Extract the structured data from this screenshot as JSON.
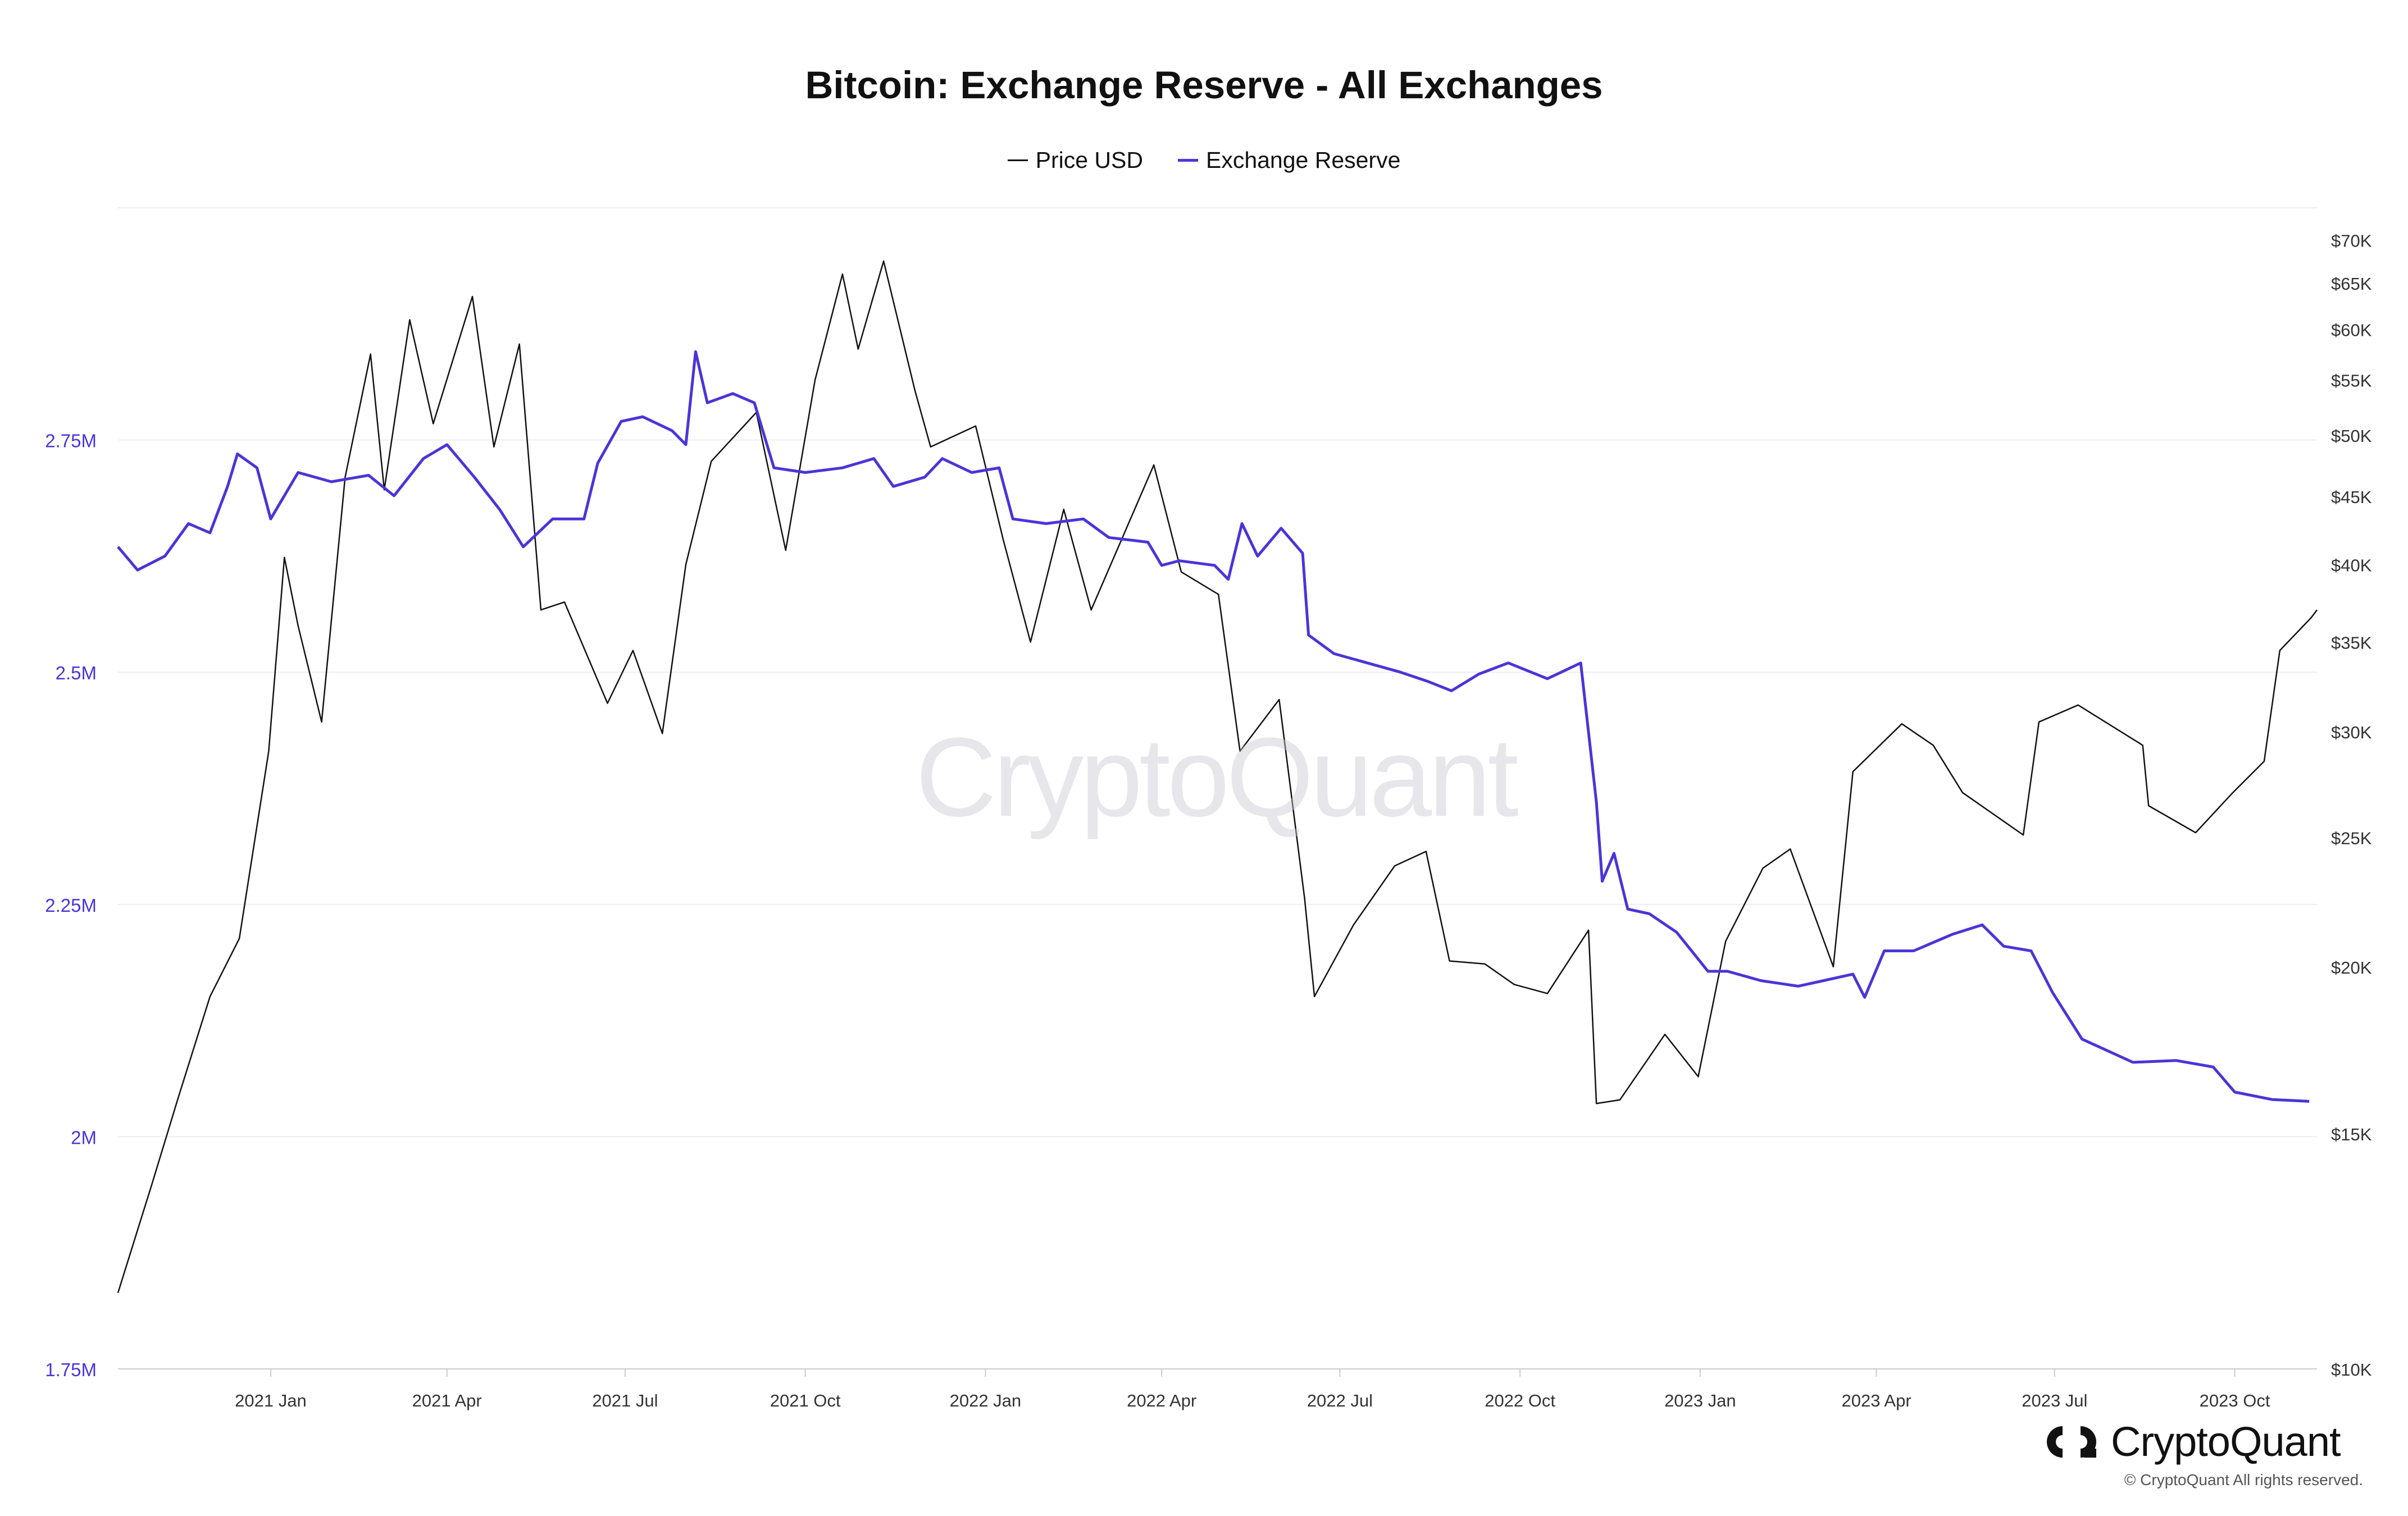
{
  "chart_data": {
    "type": "line",
    "title": "Bitcoin: Exchange Reserve - All Exchanges",
    "legend": [
      "Price USD",
      "Exchange Reserve"
    ],
    "legend_placement": "top-center",
    "colors": {
      "price": "#111111",
      "reserve": "#4a35d8",
      "left_axis_text": "#4a35d8"
    },
    "x_ticks": [
      "2021 Jan",
      "2021 Apr",
      "2021 Jul",
      "2021 Oct",
      "2022 Jan",
      "2022 Apr",
      "2022 Jul",
      "2022 Oct",
      "2023 Jan",
      "2023 Apr",
      "2023 Jul",
      "2023 Oct"
    ],
    "x_range": [
      "2020-10-15",
      "2023-11-12"
    ],
    "y_left": {
      "ticks": [
        "1.75M",
        "2M",
        "2.25M",
        "2.5M",
        "2.75M"
      ],
      "values": [
        1750000,
        2000000,
        2250000,
        2500000,
        2750000
      ],
      "range": [
        1750000,
        3000000
      ]
    },
    "y_right": {
      "scale": "log",
      "ticks": [
        "$10K",
        "$15K",
        "$20K",
        "$25K",
        "$30K",
        "$35K",
        "$40K",
        "$45K",
        "$50K",
        "$55K",
        "$60K",
        "$65K",
        "$70K"
      ],
      "values": [
        10000,
        15000,
        20000,
        25000,
        30000,
        35000,
        40000,
        45000,
        50000,
        55000,
        60000,
        65000,
        70000
      ],
      "range": [
        10000,
        74000
      ]
    },
    "grid": true,
    "series": [
      {
        "name": "Price USD",
        "axis": "right",
        "points": [
          [
            "2020-10-15",
            11400
          ],
          [
            "2020-11-01",
            13700
          ],
          [
            "2020-11-15",
            16000
          ],
          [
            "2020-12-01",
            19000
          ],
          [
            "2020-12-16",
            21000
          ],
          [
            "2020-12-31",
            29000
          ],
          [
            "2021-01-08",
            40500
          ],
          [
            "2021-01-15",
            36000
          ],
          [
            "2021-01-27",
            30500
          ],
          [
            "2021-02-08",
            46500
          ],
          [
            "2021-02-21",
            57500
          ],
          [
            "2021-02-28",
            45500
          ],
          [
            "2021-03-13",
            61000
          ],
          [
            "2021-03-25",
            51000
          ],
          [
            "2021-04-14",
            63500
          ],
          [
            "2021-04-25",
            49000
          ],
          [
            "2021-05-08",
            58500
          ],
          [
            "2021-05-19",
            37000
          ],
          [
            "2021-05-31",
            37500
          ],
          [
            "2021-06-22",
            31500
          ],
          [
            "2021-07-05",
            34500
          ],
          [
            "2021-07-20",
            29900
          ],
          [
            "2021-08-01",
            40000
          ],
          [
            "2021-08-14",
            47800
          ],
          [
            "2021-09-06",
            52000
          ],
          [
            "2021-09-21",
            41000
          ],
          [
            "2021-10-06",
            55000
          ],
          [
            "2021-10-20",
            66000
          ],
          [
            "2021-10-28",
            58000
          ],
          [
            "2021-11-10",
            67500
          ],
          [
            "2021-11-26",
            54000
          ],
          [
            "2021-12-04",
            49000
          ],
          [
            "2021-12-27",
            50800
          ],
          [
            "2022-01-10",
            41800
          ],
          [
            "2022-01-24",
            35000
          ],
          [
            "2022-02-10",
            44000
          ],
          [
            "2022-02-24",
            37000
          ],
          [
            "2022-03-28",
            47500
          ],
          [
            "2022-04-11",
            39500
          ],
          [
            "2022-04-30",
            38000
          ],
          [
            "2022-05-11",
            29000
          ],
          [
            "2022-05-31",
            31700
          ],
          [
            "2022-06-13",
            22500
          ],
          [
            "2022-06-18",
            19000
          ],
          [
            "2022-07-08",
            21500
          ],
          [
            "2022-07-29",
            23800
          ],
          [
            "2022-08-14",
            24400
          ],
          [
            "2022-08-26",
            20200
          ],
          [
            "2022-09-13",
            20100
          ],
          [
            "2022-09-28",
            19400
          ],
          [
            "2022-10-15",
            19100
          ],
          [
            "2022-11-05",
            21300
          ],
          [
            "2022-11-09",
            15800
          ],
          [
            "2022-11-21",
            15900
          ],
          [
            "2022-12-14",
            17800
          ],
          [
            "2022-12-31",
            16550
          ],
          [
            "2023-01-14",
            20900
          ],
          [
            "2023-02-02",
            23700
          ],
          [
            "2023-02-16",
            24500
          ],
          [
            "2023-03-10",
            20000
          ],
          [
            "2023-03-20",
            28000
          ],
          [
            "2023-04-14",
            30400
          ],
          [
            "2023-04-30",
            29300
          ],
          [
            "2023-05-15",
            27000
          ],
          [
            "2023-06-15",
            25100
          ],
          [
            "2023-06-23",
            30500
          ],
          [
            "2023-07-13",
            31400
          ],
          [
            "2023-08-15",
            29300
          ],
          [
            "2023-08-18",
            26400
          ],
          [
            "2023-09-11",
            25200
          ],
          [
            "2023-09-30",
            27000
          ],
          [
            "2023-10-16",
            28500
          ],
          [
            "2023-10-24",
            34500
          ],
          [
            "2023-11-09",
            36500
          ],
          [
            "2023-11-12",
            37000
          ]
        ]
      },
      {
        "name": "Exchange Reserve",
        "axis": "left",
        "points": [
          [
            "2020-10-15",
            2635000
          ],
          [
            "2020-10-25",
            2610000
          ],
          [
            "2020-11-08",
            2625000
          ],
          [
            "2020-11-20",
            2660000
          ],
          [
            "2020-12-01",
            2650000
          ],
          [
            "2020-12-10",
            2700000
          ],
          [
            "2020-12-15",
            2735000
          ],
          [
            "2020-12-25",
            2720000
          ],
          [
            "2021-01-01",
            2665000
          ],
          [
            "2021-01-15",
            2715000
          ],
          [
            "2021-02-01",
            2705000
          ],
          [
            "2021-02-20",
            2712000
          ],
          [
            "2021-03-05",
            2690000
          ],
          [
            "2021-03-20",
            2730000
          ],
          [
            "2021-04-01",
            2745000
          ],
          [
            "2021-04-15",
            2710000
          ],
          [
            "2021-04-28",
            2675000
          ],
          [
            "2021-05-10",
            2635000
          ],
          [
            "2021-05-25",
            2665000
          ],
          [
            "2021-06-10",
            2665000
          ],
          [
            "2021-06-17",
            2725000
          ],
          [
            "2021-06-29",
            2770000
          ],
          [
            "2021-07-10",
            2775000
          ],
          [
            "2021-07-25",
            2760000
          ],
          [
            "2021-08-01",
            2745000
          ],
          [
            "2021-08-06",
            2845000
          ],
          [
            "2021-08-12",
            2790000
          ],
          [
            "2021-08-25",
            2800000
          ],
          [
            "2021-09-05",
            2790000
          ],
          [
            "2021-09-15",
            2720000
          ],
          [
            "2021-10-01",
            2715000
          ],
          [
            "2021-10-20",
            2720000
          ],
          [
            "2021-11-05",
            2730000
          ],
          [
            "2021-11-15",
            2700000
          ],
          [
            "2021-12-01",
            2710000
          ],
          [
            "2021-12-10",
            2730000
          ],
          [
            "2021-12-25",
            2715000
          ],
          [
            "2022-01-08",
            2720000
          ],
          [
            "2022-01-15",
            2665000
          ],
          [
            "2022-02-01",
            2660000
          ],
          [
            "2022-02-20",
            2665000
          ],
          [
            "2022-03-05",
            2645000
          ],
          [
            "2022-03-25",
            2640000
          ],
          [
            "2022-04-01",
            2615000
          ],
          [
            "2022-04-10",
            2620000
          ],
          [
            "2022-04-28",
            2615000
          ],
          [
            "2022-05-05",
            2600000
          ],
          [
            "2022-05-12",
            2660000
          ],
          [
            "2022-05-20",
            2625000
          ],
          [
            "2022-06-01",
            2655000
          ],
          [
            "2022-06-12",
            2628000
          ],
          [
            "2022-06-15",
            2540000
          ],
          [
            "2022-06-28",
            2520000
          ],
          [
            "2022-07-15",
            2510000
          ],
          [
            "2022-08-01",
            2500000
          ],
          [
            "2022-08-15",
            2490000
          ],
          [
            "2022-08-27",
            2480000
          ],
          [
            "2022-09-10",
            2498000
          ],
          [
            "2022-09-25",
            2510000
          ],
          [
            "2022-10-15",
            2493000
          ],
          [
            "2022-11-01",
            2510000
          ],
          [
            "2022-11-09",
            2360000
          ],
          [
            "2022-11-12",
            2275000
          ],
          [
            "2022-11-18",
            2305000
          ],
          [
            "2022-11-25",
            2245000
          ],
          [
            "2022-12-06",
            2240000
          ],
          [
            "2022-12-20",
            2220000
          ],
          [
            "2023-01-05",
            2178000
          ],
          [
            "2023-01-15",
            2178000
          ],
          [
            "2023-02-01",
            2168000
          ],
          [
            "2023-02-20",
            2162000
          ],
          [
            "2023-03-05",
            2168000
          ],
          [
            "2023-03-20",
            2175000
          ],
          [
            "2023-03-26",
            2150000
          ],
          [
            "2023-04-05",
            2200000
          ],
          [
            "2023-04-20",
            2200000
          ],
          [
            "2023-05-10",
            2218000
          ],
          [
            "2023-05-25",
            2228000
          ],
          [
            "2023-06-05",
            2205000
          ],
          [
            "2023-06-19",
            2200000
          ],
          [
            "2023-06-30",
            2155000
          ],
          [
            "2023-07-15",
            2105000
          ],
          [
            "2023-08-10",
            2080000
          ],
          [
            "2023-09-01",
            2082000
          ],
          [
            "2023-09-20",
            2075000
          ],
          [
            "2023-10-01",
            2048000
          ],
          [
            "2023-10-20",
            2040000
          ],
          [
            "2023-11-08",
            2038000
          ]
        ]
      }
    ]
  },
  "branding": {
    "logo_text": "CryptoQuant",
    "copyright": "© CryptoQuant All rights reserved.",
    "watermark": "CryptoQuant"
  }
}
